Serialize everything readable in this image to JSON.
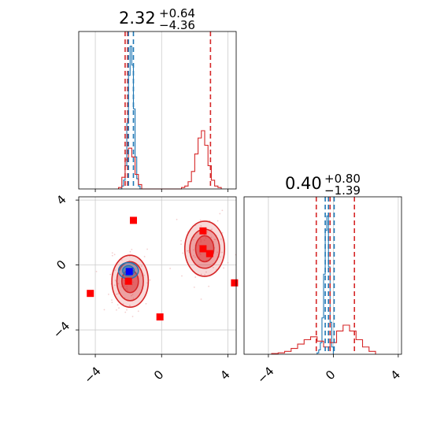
{
  "chart_data": [
    {
      "type": "histogram",
      "panel": "top-left marginal (parameter 1)",
      "title_main": "2.32",
      "title_sup": "+0.64",
      "title_sub": "−4.36",
      "xlim": [
        -5,
        4.5
      ],
      "grid": true,
      "series": [
        {
          "color": "#1f77b4",
          "bins": [
            -2.5,
            -2.4,
            -2.3,
            -2.2,
            -2.1,
            -2.0,
            -1.9,
            -1.8,
            -1.7,
            -1.6,
            -1.5,
            -1.4,
            -1.3,
            -1.2
          ],
          "heights": [
            0,
            0.02,
            0.06,
            0.16,
            0.45,
            0.78,
            0.98,
            0.85,
            0.55,
            0.22,
            0.07,
            0.02,
            0
          ]
        },
        {
          "color": "#d62728",
          "bins": [
            -2.6,
            -2.4,
            -2.2,
            -2.0,
            -1.8,
            -1.6,
            -1.4,
            -1.2,
            1.2,
            1.4,
            1.6,
            1.8,
            2.0,
            2.2,
            2.4,
            2.6,
            2.8,
            3.0,
            3.2,
            3.4,
            3.6
          ],
          "heights": [
            0.01,
            0.08,
            0.2,
            0.28,
            0.22,
            0.1,
            0.03,
            0,
            0.01,
            0.02,
            0.05,
            0.12,
            0.24,
            0.35,
            0.4,
            0.3,
            0.16,
            0.06,
            0.02,
            0.01
          ]
        }
      ],
      "vlines": [
        {
          "x": -2.2,
          "color": "#d62728"
        },
        {
          "x": -2.05,
          "color": "#d62728"
        },
        {
          "x": -2.0,
          "color": "#1f77b4"
        },
        {
          "x": -1.7,
          "color": "#1f77b4"
        },
        {
          "x": 2.95,
          "color": "#d62728"
        }
      ]
    },
    {
      "type": "contour-scatter",
      "panel": "bottom-left joint (parameter 1 vs parameter 2)",
      "xlim": [
        -5,
        4.5
      ],
      "ylim": [
        -5.5,
        4.2
      ],
      "xticks": [
        -4,
        0,
        4
      ],
      "yticks": [
        -4,
        0,
        4
      ],
      "xtick_labels": [
        "−4",
        "0",
        "4"
      ],
      "ytick_labels": [
        "4",
        "0",
        "−4"
      ],
      "grid": true,
      "red_contours": [
        {
          "cx": -1.9,
          "cy": -1.0,
          "rx": 1.1,
          "ry": 1.6,
          "opacity": 0.25
        },
        {
          "cx": -1.9,
          "cy": -1.0,
          "rx": 0.8,
          "ry": 1.2,
          "opacity": 0.45
        },
        {
          "cx": -1.9,
          "cy": -1.0,
          "rx": 0.5,
          "ry": 0.7,
          "opacity": 0.7
        },
        {
          "cx": 2.6,
          "cy": 1.0,
          "rx": 1.2,
          "ry": 1.7,
          "opacity": 0.25
        },
        {
          "cx": 2.6,
          "cy": 1.0,
          "rx": 0.9,
          "ry": 1.2,
          "opacity": 0.45
        },
        {
          "cx": 2.6,
          "cy": 1.0,
          "rx": 0.55,
          "ry": 0.8,
          "opacity": 0.7
        }
      ],
      "blue_contours": [
        {
          "cx": -2.0,
          "cy": -0.35,
          "rx": 0.6,
          "ry": 0.5,
          "opacity": 0.55
        },
        {
          "cx": -2.0,
          "cy": -0.35,
          "rx": 0.35,
          "ry": 0.3,
          "opacity": 0.8
        }
      ],
      "red_points": [
        {
          "x": -1.7,
          "y": 2.75
        },
        {
          "x": -4.3,
          "y": -1.75
        },
        {
          "x": -0.1,
          "y": -3.2
        },
        {
          "x": 2.5,
          "y": 2.1
        },
        {
          "x": 2.5,
          "y": 1.0
        },
        {
          "x": 2.9,
          "y": 0.7
        },
        {
          "x": 4.4,
          "y": -1.1
        },
        {
          "x": -2.0,
          "y": -1.0
        }
      ],
      "blue_points": [
        {
          "x": -1.95,
          "y": -0.4
        }
      ]
    },
    {
      "type": "histogram",
      "panel": "bottom-right marginal (parameter 2)",
      "title_main": "0.40",
      "title_sup": "+0.80",
      "title_sub": "−1.39",
      "xlim": [
        -5.5,
        4.2
      ],
      "xticks": [
        -4,
        0,
        4
      ],
      "xtick_labels": [
        "−4",
        "0",
        "4"
      ],
      "grid": true,
      "series": [
        {
          "color": "#1f77b4",
          "bins": [
            -1.0,
            -0.9,
            -0.8,
            -0.7,
            -0.6,
            -0.5,
            -0.4,
            -0.3,
            -0.2,
            -0.1,
            0.0
          ],
          "heights": [
            0.01,
            0.03,
            0.08,
            0.25,
            0.55,
            0.85,
            0.95,
            0.6,
            0.22,
            0.05
          ]
        },
        {
          "color": "#d62728",
          "bins": [
            -3.8,
            -3.4,
            -3.0,
            -2.6,
            -2.2,
            -1.8,
            -1.4,
            -1.0,
            -0.6,
            -0.2,
            0.2,
            0.6,
            1.0,
            1.4,
            1.8,
            2.2,
            2.6
          ],
          "heights": [
            0.005,
            0.01,
            0.02,
            0.04,
            0.07,
            0.1,
            0.12,
            0.09,
            0.05,
            0.08,
            0.16,
            0.2,
            0.16,
            0.1,
            0.05,
            0.02
          ]
        }
      ],
      "vlines": [
        {
          "x": -1.05,
          "color": "#d62728"
        },
        {
          "x": -0.5,
          "color": "#1f77b4"
        },
        {
          "x": -0.3,
          "color": "#1f77b4"
        },
        {
          "x": -0.2,
          "color": "#d62728"
        },
        {
          "x": 0.05,
          "color": "#1f77b4"
        },
        {
          "x": 1.3,
          "color": "#d62728"
        }
      ]
    }
  ]
}
